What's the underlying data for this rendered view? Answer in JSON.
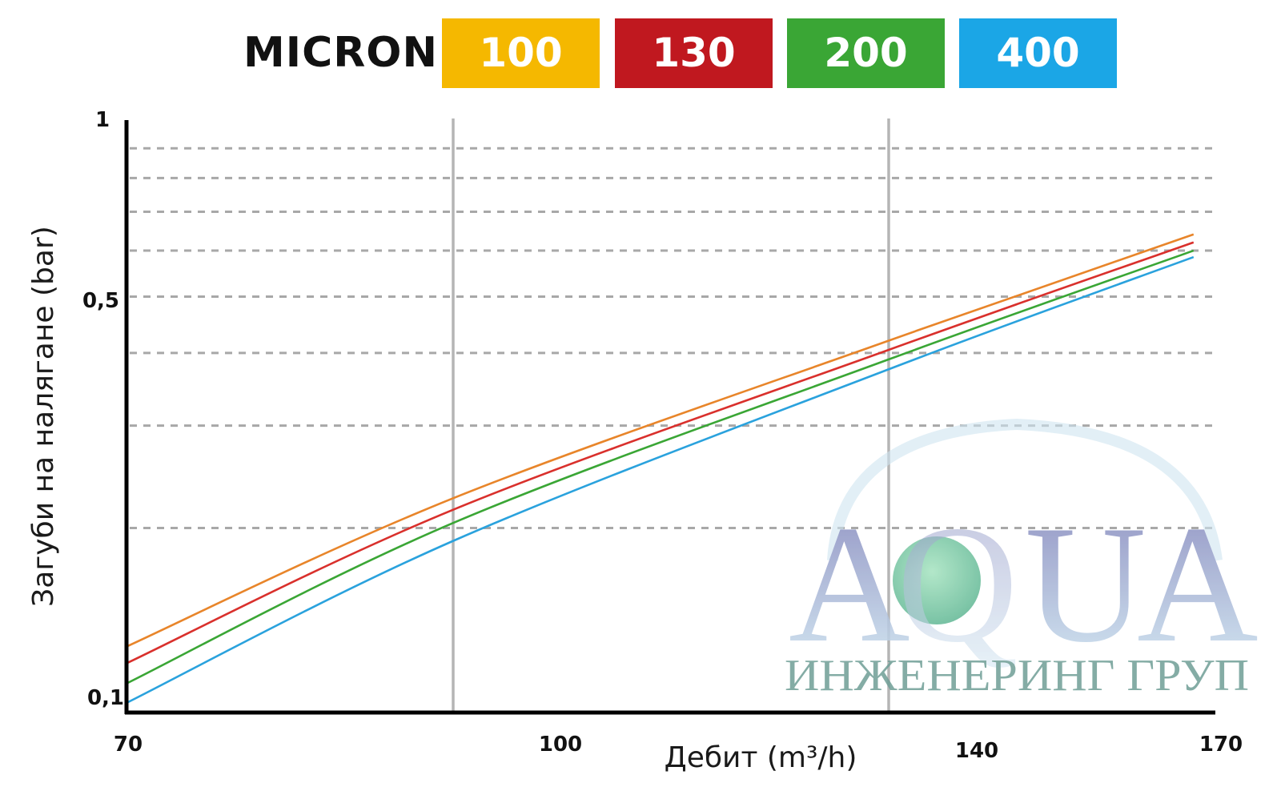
{
  "legend": {
    "title": "MICRON",
    "items": [
      {
        "label": "100",
        "color": "#f5b800"
      },
      {
        "label": "130",
        "color": "#c0181f"
      },
      {
        "label": "200",
        "color": "#3aa635"
      },
      {
        "label": "400",
        "color": "#1ba6e6"
      }
    ]
  },
  "watermark": {
    "letters": [
      "A",
      "Q",
      "U",
      "A"
    ],
    "subtitle": "ИНЖЕНЕРИНГ ГРУП"
  },
  "chart_data": {
    "type": "line",
    "title": "",
    "xlabel": "Дебит (m³/h)",
    "ylabel": "Загуби на налягане (bar)",
    "xlim": [
      70,
      170
    ],
    "ylim": [
      0.1,
      1
    ],
    "yscale": "log",
    "grid": true,
    "x_tick_labels": [
      "70",
      "100",
      "140",
      "170"
    ],
    "y_tick_labels": [
      "1",
      "0,5",
      "0,1"
    ],
    "x_ticks": [
      70,
      100,
      140,
      170
    ],
    "y_ticks": [
      1,
      0.5,
      0.1
    ],
    "series": [
      {
        "name": "100",
        "color": "#e8852a",
        "x": [
          70,
          100,
          140,
          168
        ],
        "y": [
          0.125,
          0.225,
          0.42,
          0.64
        ]
      },
      {
        "name": "130",
        "color": "#d9302c",
        "x": [
          70,
          100,
          140,
          168
        ],
        "y": [
          0.117,
          0.215,
          0.405,
          0.62
        ]
      },
      {
        "name": "200",
        "color": "#3aa635",
        "x": [
          70,
          100,
          140,
          168
        ],
        "y": [
          0.108,
          0.204,
          0.39,
          0.6
        ]
      },
      {
        "name": "400",
        "color": "#2aa2dd",
        "x": [
          70,
          100,
          140,
          168
        ],
        "y": [
          0.1,
          0.19,
          0.375,
          0.585
        ]
      }
    ]
  }
}
